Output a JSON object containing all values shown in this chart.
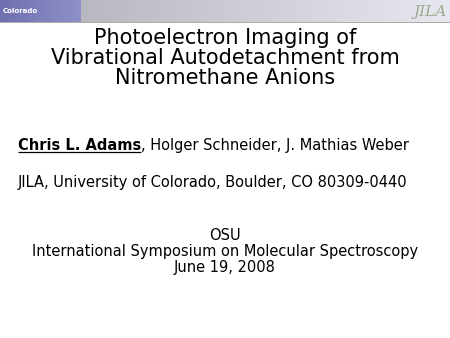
{
  "title_lines": [
    "Photoelectron Imaging of",
    "Vibrational Autodetachment from",
    "Nitromethane Anions"
  ],
  "author_bold_underline": "Chris L. Adams",
  "author_rest": ", Holger Schneider, J. Mathias Weber",
  "affiliation": "JILA, University of Colorado, Boulder, CO 80309-0440",
  "conference_lines": [
    "OSU",
    "International Symposium on Molecular Spectroscopy",
    "June 19, 2008"
  ],
  "background_color": "#ffffff",
  "text_color": "#000000",
  "header_left_color": "#8080b8",
  "header_right_color": "#d0d0e0",
  "jila_text_color": "#9aaa90",
  "title_fontsize": 15,
  "author_fontsize": 10.5,
  "affiliation_fontsize": 10.5,
  "conference_fontsize": 10.5
}
